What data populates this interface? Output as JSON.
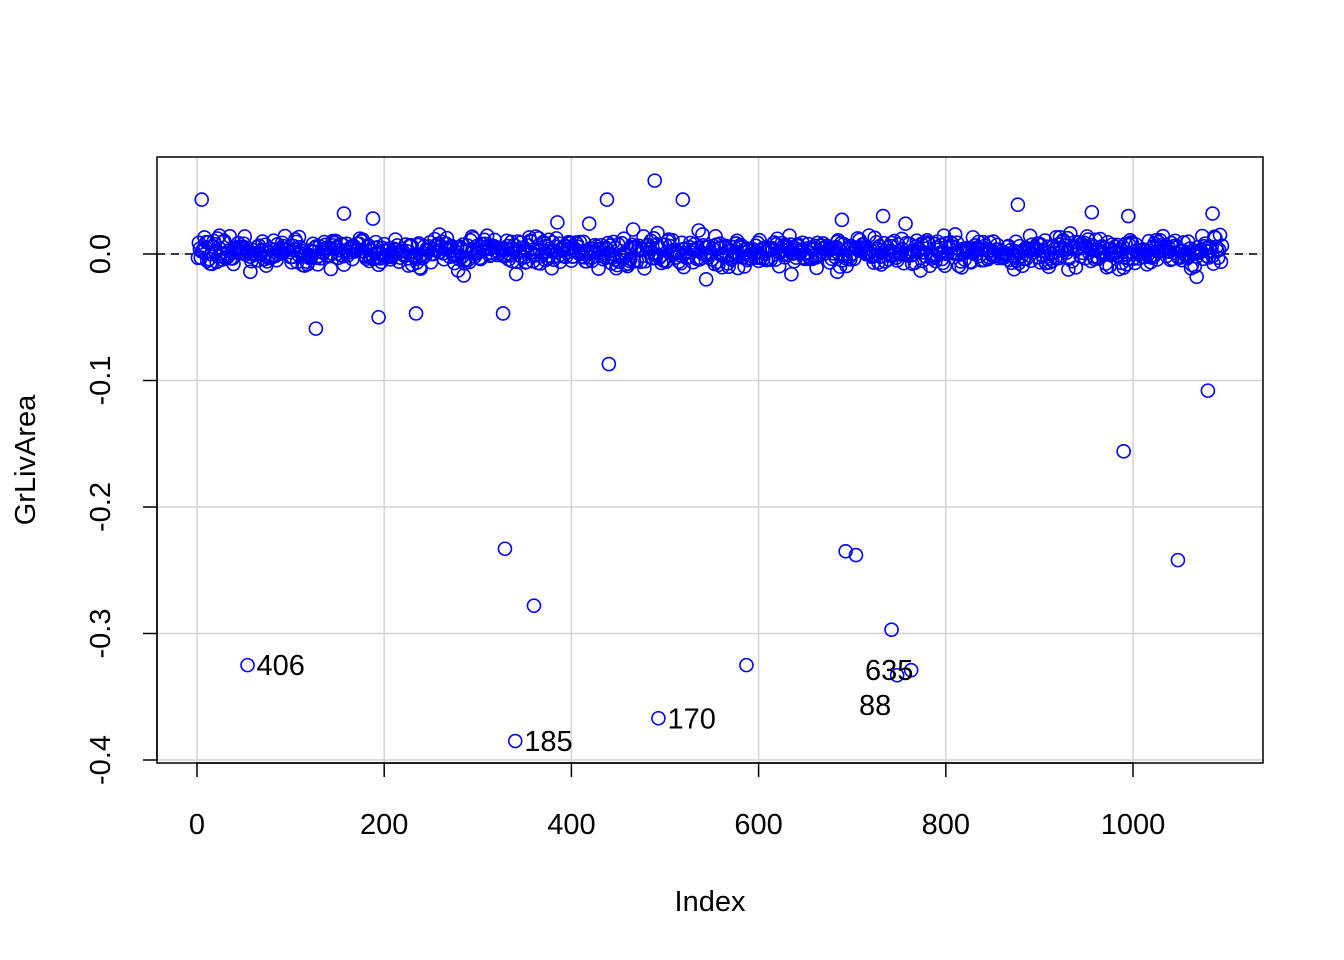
{
  "chart_data": {
    "type": "scatter",
    "title": "",
    "xlabel": "Index",
    "ylabel": "GrLivArea",
    "xlim": [
      -40,
      1140
    ],
    "ylim": [
      -0.405,
      0.076
    ],
    "xticks": [
      0,
      200,
      400,
      600,
      800,
      1000
    ],
    "xtick_labels": [
      "0",
      "200",
      "400",
      "600",
      "800",
      "1000"
    ],
    "yticks": [
      0.0,
      -0.1,
      -0.2,
      -0.3,
      -0.4
    ],
    "ytick_labels": [
      "0.0",
      "-0.1",
      "-0.2",
      "-0.3",
      "-0.4"
    ],
    "grid": true,
    "reference_line": {
      "y": 0,
      "style": "dashed",
      "color": "#000000"
    },
    "marker_color": "#0000FF",
    "marker": "open-circle",
    "bulk": {
      "n": 1095,
      "center": 0.002,
      "spread": 0.006,
      "seed": 17
    },
    "points": [
      {
        "x": 5,
        "y": 0.043
      },
      {
        "x": 54,
        "y": -0.325,
        "label": "406",
        "pos": "right"
      },
      {
        "x": 127,
        "y": -0.059
      },
      {
        "x": 194,
        "y": -0.05
      },
      {
        "x": 234,
        "y": -0.047
      },
      {
        "x": 327,
        "y": -0.047
      },
      {
        "x": 329,
        "y": -0.233
      },
      {
        "x": 360,
        "y": -0.278
      },
      {
        "x": 340,
        "y": -0.385,
        "label": "185",
        "pos": "right"
      },
      {
        "x": 438,
        "y": 0.043
      },
      {
        "x": 440,
        "y": -0.087
      },
      {
        "x": 489,
        "y": 0.058
      },
      {
        "x": 493,
        "y": -0.367,
        "label": "170",
        "pos": "right"
      },
      {
        "x": 519,
        "y": 0.043
      },
      {
        "x": 587,
        "y": -0.325
      },
      {
        "x": 693,
        "y": -0.235
      },
      {
        "x": 704,
        "y": -0.238
      },
      {
        "x": 742,
        "y": -0.297
      },
      {
        "x": 748,
        "y": -0.333,
        "label": "88",
        "pos": "left"
      },
      {
        "x": 763,
        "y": -0.329,
        "label": "635",
        "pos": "left"
      },
      {
        "x": 877,
        "y": 0.039
      },
      {
        "x": 990,
        "y": -0.156
      },
      {
        "x": 1048,
        "y": -0.242
      },
      {
        "x": 1080,
        "y": -0.108
      },
      {
        "x": 1085,
        "y": 0.032
      },
      {
        "x": 544,
        "y": -0.02
      },
      {
        "x": 1068,
        "y": -0.018
      },
      {
        "x": 285,
        "y": -0.017
      },
      {
        "x": 57,
        "y": -0.014
      },
      {
        "x": 635,
        "y": -0.016
      },
      {
        "x": 684,
        "y": -0.014
      },
      {
        "x": 157,
        "y": 0.032
      },
      {
        "x": 188,
        "y": 0.028
      },
      {
        "x": 385,
        "y": 0.025
      },
      {
        "x": 733,
        "y": 0.03
      },
      {
        "x": 956,
        "y": 0.033
      },
      {
        "x": 995,
        "y": 0.03
      },
      {
        "x": 689,
        "y": 0.027
      },
      {
        "x": 757,
        "y": 0.024
      },
      {
        "x": 419,
        "y": 0.024
      }
    ]
  }
}
